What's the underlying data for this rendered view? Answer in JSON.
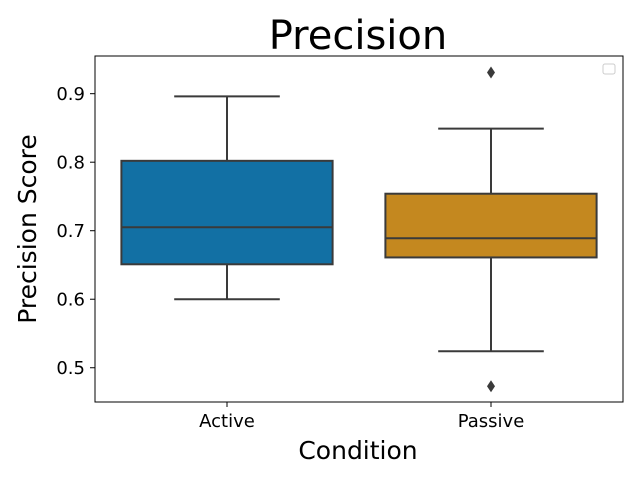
{
  "chart_data": {
    "type": "box",
    "title": "Precision",
    "xlabel": "Condition",
    "ylabel": "Precision Score",
    "categories": [
      "Active",
      "Passive"
    ],
    "colors": [
      "#1270a4",
      "#c4881f"
    ],
    "box_edge_color": "#3a3a3a",
    "ylim": [
      0.45,
      0.955
    ],
    "yticks": [
      0.5,
      0.6,
      0.7,
      0.8,
      0.9
    ],
    "ytick_labels": [
      "0.5",
      "0.6",
      "0.7",
      "0.8",
      "0.9"
    ],
    "boxes": [
      {
        "category": "Active",
        "whisker_low": 0.6,
        "q1": 0.651,
        "median": 0.705,
        "q3": 0.802,
        "whisker_high": 0.896,
        "outliers": []
      },
      {
        "category": "Passive",
        "whisker_low": 0.524,
        "q1": 0.661,
        "median": 0.689,
        "q3": 0.754,
        "whisker_high": 0.849,
        "outliers": [
          0.931,
          0.473
        ]
      }
    ],
    "grid": false,
    "legend": {
      "placement": "upper right",
      "entries": []
    }
  }
}
